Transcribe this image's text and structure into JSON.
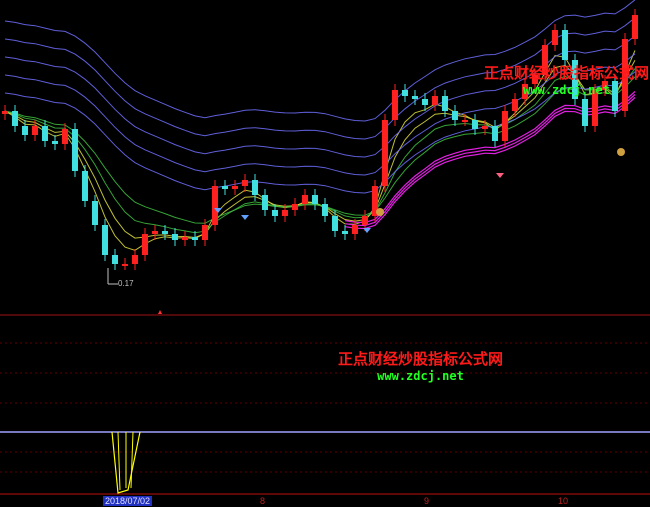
{
  "chart_data": {
    "type": "candlestick",
    "candles": {
      "open": [
        62,
        63,
        58,
        55,
        58,
        53,
        52,
        57,
        43,
        33,
        25,
        15,
        12,
        12,
        15,
        22,
        23,
        22,
        20,
        21,
        20,
        25,
        38,
        37,
        38,
        40,
        35,
        30,
        28,
        30,
        32,
        35,
        32,
        28,
        23,
        22,
        25,
        28,
        38,
        60,
        70,
        68,
        67,
        65,
        68,
        63,
        60,
        60,
        57,
        58,
        53,
        63,
        67,
        72,
        75,
        85,
        90,
        80,
        67,
        58,
        70,
        73,
        63,
        87
      ],
      "close": [
        63,
        58,
        55,
        58,
        53,
        52,
        57,
        43,
        33,
        25,
        15,
        12,
        12,
        15,
        22,
        23,
        22,
        20,
        21,
        20,
        25,
        38,
        37,
        38,
        40,
        35,
        30,
        28,
        30,
        32,
        35,
        32,
        28,
        23,
        22,
        25,
        28,
        38,
        60,
        70,
        68,
        67,
        65,
        68,
        63,
        60,
        60,
        57,
        58,
        53,
        63,
        67,
        72,
        75,
        85,
        90,
        80,
        67,
        58,
        70,
        73,
        63,
        87,
        95
      ]
    },
    "min_label": "0.17",
    "x_ticks": [
      {
        "label": "2018/07/02",
        "highlighted": true
      },
      {
        "label": "8"
      },
      {
        "label": "9"
      },
      {
        "label": "10"
      }
    ],
    "colors": {
      "up": "#ff2020",
      "down": "#40e0e0",
      "ma_short": "#e0e040",
      "ma_mid": "#40c040",
      "band": "#7070ff",
      "lower_band": "#e020e0",
      "indicator": "#ffff00",
      "grid": "#600000"
    }
  },
  "watermarks": [
    {
      "cn": "正点财经炒股指标公式网",
      "url": "www.zdcj.net"
    },
    {
      "cn": "正点财经炒股指标公式网",
      "url": "www.zdcj.net"
    }
  ]
}
